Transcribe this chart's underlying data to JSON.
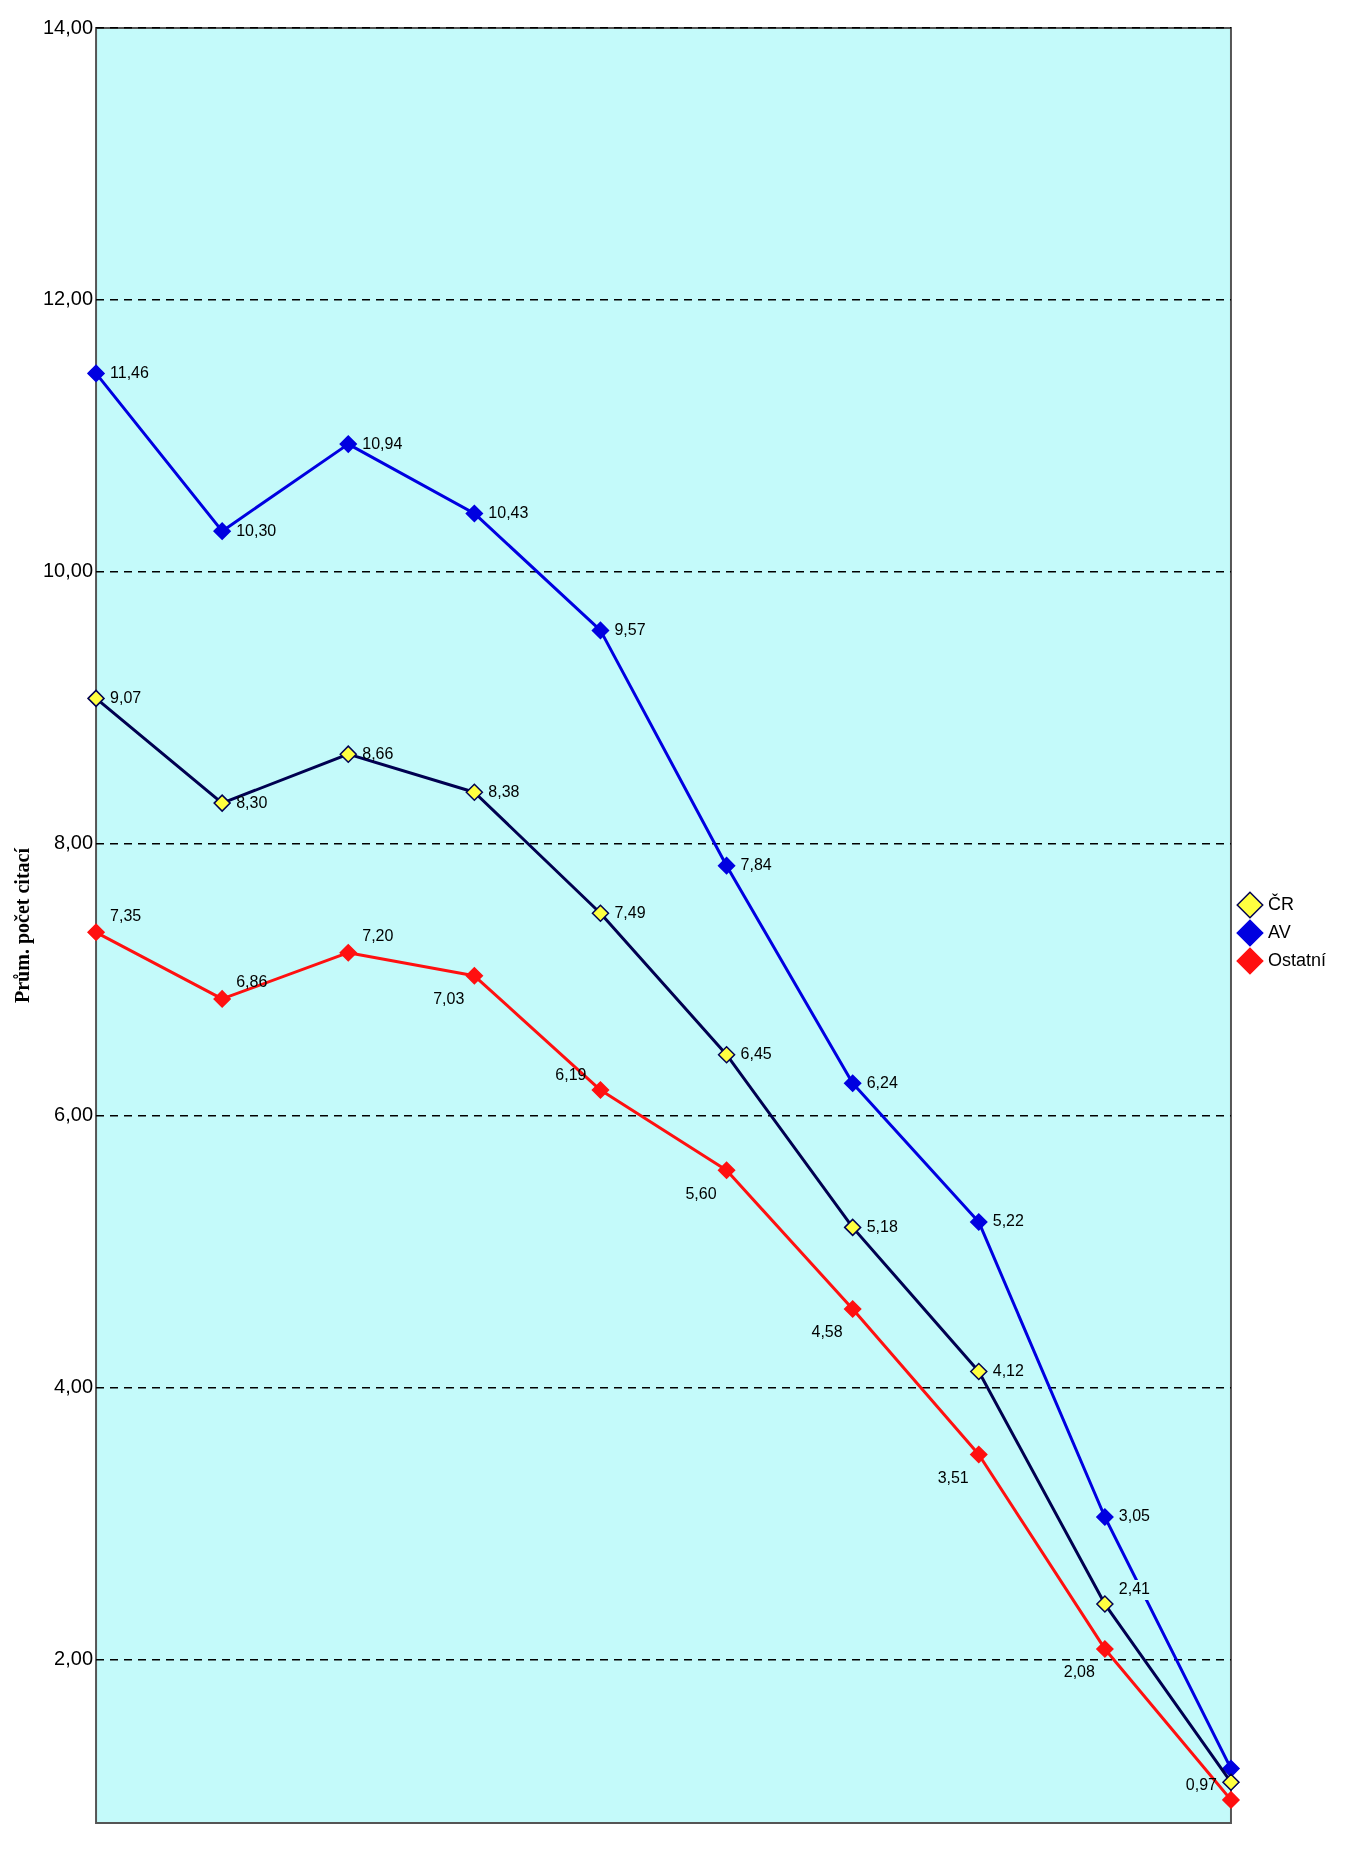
{
  "chart_data": {
    "type": "line",
    "ylabel": "Prům. počet citací",
    "categories": [
      null,
      null,
      null,
      null,
      null,
      null,
      null,
      null,
      null,
      null
    ],
    "series": [
      {
        "name": "ČR",
        "color": "#000050",
        "colors": [
          "#ffff40",
          "#ffff40",
          "#ffff40",
          "#ffff40",
          "#ffff40",
          "#ffff40",
          "#ffff40",
          "#ffff40",
          "#ffff40",
          "#ffff40"
        ],
        "values": [
          9.07,
          8.3,
          8.66,
          8.38,
          7.49,
          6.45,
          5.18,
          4.12,
          2.41,
          1.1
        ],
        "value_labels": [
          "9,07",
          "8,30",
          "8,66",
          "8,38",
          "7,49",
          "6,45",
          "5,18",
          "4,12",
          "2,41",
          null
        ]
      },
      {
        "name": "AV",
        "color": "#0000e0",
        "values": [
          11.46,
          10.3,
          10.94,
          10.43,
          9.57,
          7.84,
          6.24,
          5.22,
          3.05,
          1.2
        ],
        "value_labels": [
          "11,46",
          "10,30",
          "10,94",
          "10,43",
          "9,57",
          "7,84",
          "6,24",
          "5,22",
          "3,05",
          null
        ]
      },
      {
        "name": "Ostatní",
        "color": "#ff1010",
        "values": [
          7.35,
          6.86,
          7.2,
          7.03,
          6.19,
          5.6,
          4.58,
          3.51,
          2.08,
          0.97
        ],
        "value_labels": [
          "7,35",
          "6,86",
          "7,20",
          "7,03",
          "6,19",
          "5,60",
          "4,58",
          "3,51",
          "2,08",
          "0,97"
        ]
      }
    ],
    "ylim": [
      0.8,
      14
    ],
    "yticks": [
      {
        "value": 2,
        "label": "2,00"
      },
      {
        "value": 4,
        "label": "4,00"
      },
      {
        "value": 6,
        "label": "6,00"
      },
      {
        "value": 8,
        "label": "8,00"
      },
      {
        "value": 10,
        "label": "10,00"
      },
      {
        "value": 12,
        "label": "12,00"
      },
      {
        "value": 14,
        "label": "14,00"
      }
    ],
    "grid": "y",
    "legend": "right",
    "marker": "diamond",
    "line_style": "solid",
    "tick_labels": "y"
  }
}
